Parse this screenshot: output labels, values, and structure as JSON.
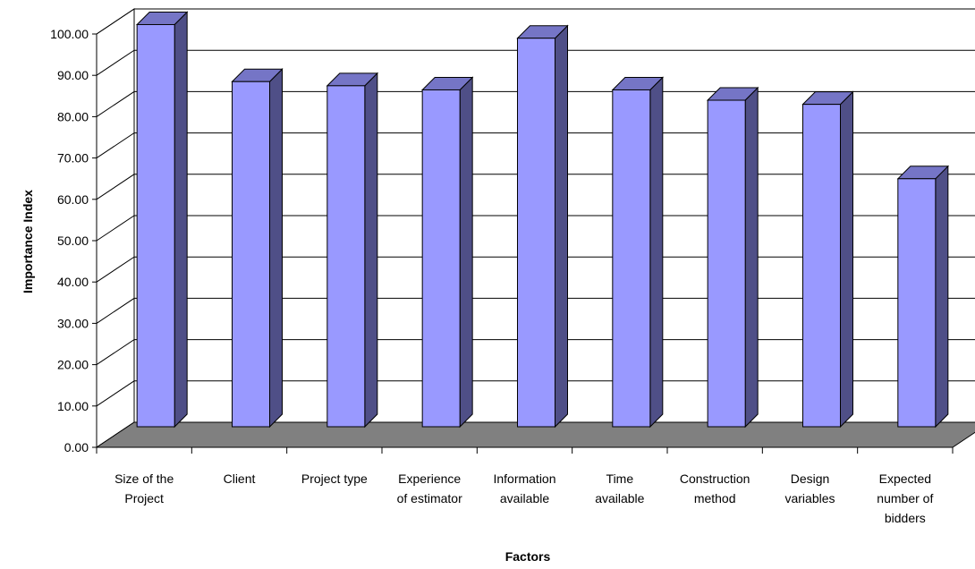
{
  "chart_data": {
    "type": "bar",
    "style": "3d-column",
    "title": "",
    "xlabel": "Factors",
    "ylabel": "Importance Index",
    "ylim": [
      0,
      100
    ],
    "ytick_step": 10,
    "ytick_labels": [
      "0.00",
      "10.00",
      "20.00",
      "30.00",
      "40.00",
      "50.00",
      "60.00",
      "70.00",
      "80.00",
      "90.00",
      "100.00"
    ],
    "grid": true,
    "legend": "none",
    "categories": [
      [
        "Size of the",
        "Project"
      ],
      [
        "Client"
      ],
      [
        "Project type"
      ],
      [
        "Experience",
        "of estimator"
      ],
      [
        "Information",
        "available"
      ],
      [
        "Time",
        "available"
      ],
      [
        "Construction",
        "method"
      ],
      [
        "Design",
        "variables"
      ],
      [
        "Expected",
        "number of",
        "bidders"
      ]
    ],
    "values": [
      97.3,
      83.5,
      82.5,
      81.5,
      94.0,
      81.5,
      79.0,
      78.0,
      60.0
    ],
    "colors": {
      "bar_front": "#9999FF",
      "bar_side": "#4F4F87",
      "bar_top": "#7575C6",
      "floor": "#808080",
      "grid": "#000000"
    }
  }
}
